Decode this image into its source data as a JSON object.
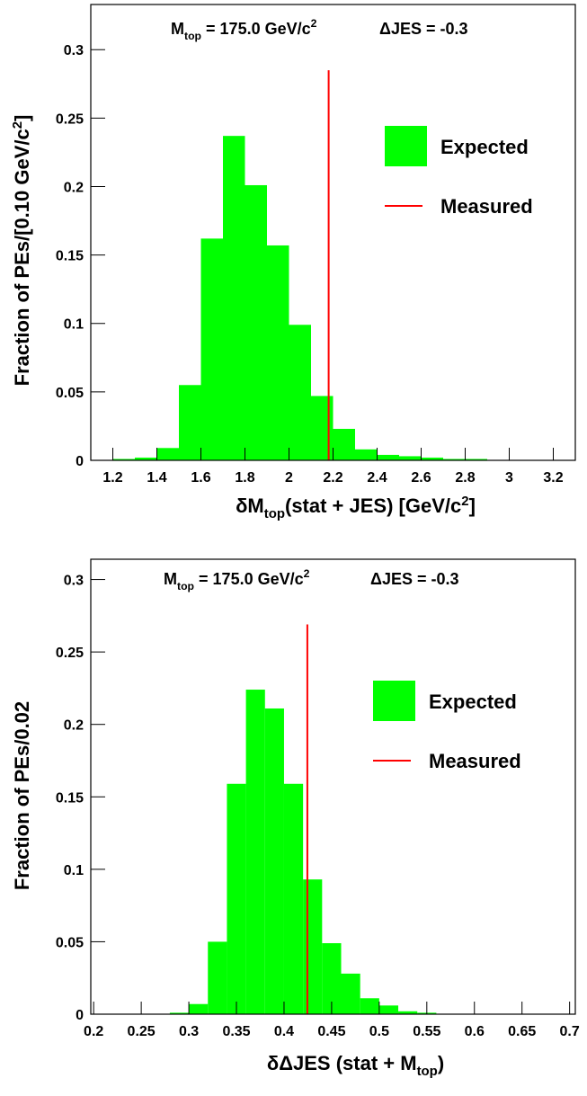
{
  "chart_data": [
    {
      "type": "histogram",
      "annotation": {
        "mass": [
          "M",
          "top",
          " = 175.0 GeV/c",
          "2"
        ],
        "jes": "ΔJES = -0.3"
      },
      "xlabel": [
        "δM",
        "top",
        "(stat + JES) [GeV/c",
        "2",
        "]"
      ],
      "ylabel": [
        "Fraction of PEs/[0.10 GeV/c",
        "2",
        "]"
      ],
      "bins": [
        1.2,
        1.3,
        1.4,
        1.5,
        1.6,
        1.7,
        1.8,
        1.9,
        2.0,
        2.1,
        2.2,
        2.3,
        2.4,
        2.5,
        2.6,
        2.7,
        2.8,
        2.9
      ],
      "series": [
        {
          "name": "Expected",
          "color": "#00ff00",
          "values": [
            0.001,
            0.002,
            0.009,
            0.055,
            0.162,
            0.237,
            0.201,
            0.157,
            0.099,
            0.047,
            0.023,
            0.008,
            0.004,
            0.003,
            0.002,
            0.001,
            0.001
          ]
        }
      ],
      "measured": {
        "name": "Measured",
        "color": "#ff0000",
        "x": 2.18,
        "y": 0.285
      },
      "xlim": [
        1.1,
        3.3
      ],
      "xticks": [
        1.2,
        1.4,
        1.6,
        1.8,
        2,
        2.2,
        2.4,
        2.6,
        2.8,
        3,
        3.2
      ],
      "ylim": [
        0,
        0.333
      ],
      "yticks": [
        0,
        0.05,
        0.1,
        0.15,
        0.2,
        0.25,
        0.3
      ]
    },
    {
      "type": "histogram",
      "annotation": {
        "mass": [
          "M",
          "top",
          " = 175.0 GeV/c",
          "2"
        ],
        "jes": "ΔJES = -0.3"
      },
      "xlabel": [
        "δΔJES (stat + M",
        "top",
        ")"
      ],
      "ylabel": [
        "Fraction of PEs/0.02"
      ],
      "bins": [
        0.28,
        0.3,
        0.32,
        0.34,
        0.36,
        0.38,
        0.4,
        0.42,
        0.44,
        0.46,
        0.48,
        0.5,
        0.52,
        0.54,
        0.56
      ],
      "series": [
        {
          "name": "Expected",
          "color": "#00ff00",
          "values": [
            0.001,
            0.007,
            0.05,
            0.159,
            0.224,
            0.211,
            0.159,
            0.093,
            0.049,
            0.028,
            0.011,
            0.006,
            0.002,
            0.001
          ]
        }
      ],
      "measured": {
        "name": "Measured",
        "color": "#ff0000",
        "x": 0.4245,
        "y": 0.269
      },
      "xlim": [
        0.197,
        0.706
      ],
      "xticks": [
        0.2,
        0.25,
        0.3,
        0.35,
        0.4,
        0.45,
        0.5,
        0.55,
        0.6,
        0.65,
        0.7
      ],
      "ylim": [
        0,
        0.314
      ],
      "yticks": [
        0,
        0.05,
        0.1,
        0.15,
        0.2,
        0.25,
        0.3
      ]
    }
  ]
}
